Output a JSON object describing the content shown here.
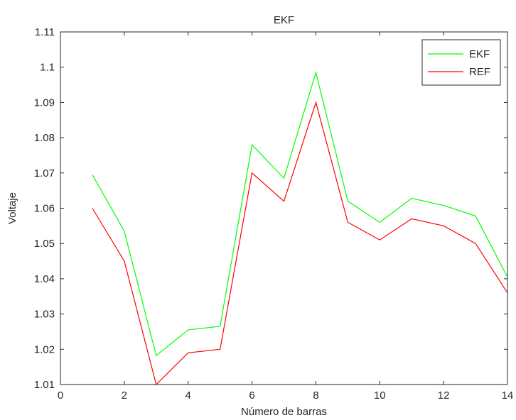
{
  "chart_data": {
    "type": "line",
    "title": "EKF",
    "xlabel": "Número de barras",
    "ylabel": "Voltaje",
    "xlim": [
      0,
      14
    ],
    "ylim": [
      1.01,
      1.11
    ],
    "x_ticks": [
      0,
      2,
      4,
      6,
      8,
      10,
      12,
      14
    ],
    "x_tick_labels": [
      "0",
      "2",
      "4",
      "6",
      "8",
      "10",
      "12",
      "14"
    ],
    "y_ticks": [
      1.01,
      1.02,
      1.03,
      1.04,
      1.05,
      1.06,
      1.07,
      1.08,
      1.09,
      1.1,
      1.11
    ],
    "y_tick_labels": [
      "1.01",
      "1.02",
      "1.03",
      "1.04",
      "1.05",
      "1.06",
      "1.07",
      "1.08",
      "1.09",
      "1.1",
      "1.11"
    ],
    "grid": false,
    "legend_position": "top-right",
    "x": [
      1,
      2,
      3,
      4,
      5,
      6,
      7,
      8,
      9,
      10,
      11,
      12,
      13,
      14
    ],
    "series": [
      {
        "name": "EKF",
        "color": "#00ff00",
        "values": [
          1.0695,
          1.0535,
          1.0182,
          1.0255,
          1.0265,
          1.078,
          1.0685,
          1.0985,
          1.062,
          1.056,
          1.0628,
          1.0608,
          1.0578,
          1.0405
        ]
      },
      {
        "name": "REF",
        "color": "#ff0000",
        "values": [
          1.06,
          1.045,
          1.01,
          1.019,
          1.02,
          1.07,
          1.062,
          1.09,
          1.056,
          1.051,
          1.057,
          1.055,
          1.05,
          1.036
        ]
      }
    ]
  }
}
